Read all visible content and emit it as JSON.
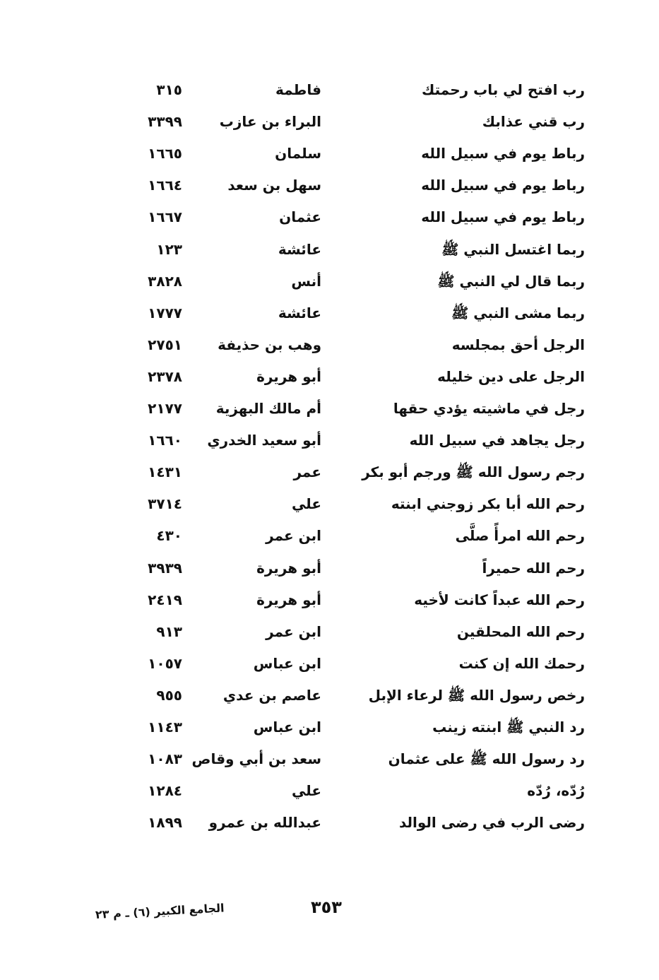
{
  "entries": [
    {
      "hadith": "رب افتح لي باب رحمتك",
      "narrator": "فاطمة",
      "number": "٣١٥"
    },
    {
      "hadith": "رب قني عذابك",
      "narrator": "البراء بن عازب",
      "number": "٣٣٩٩"
    },
    {
      "hadith": "رباط يوم في سبيل الله",
      "narrator": "سلمان",
      "number": "١٦٦٥"
    },
    {
      "hadith": "رباط يوم في سبيل الله",
      "narrator": "سهل بن سعد",
      "number": "١٦٦٤"
    },
    {
      "hadith": "رباط يوم في سبيل الله",
      "narrator": "عثمان",
      "number": "١٦٦٧"
    },
    {
      "hadith": "ربما اغتسل النبي ﷺ",
      "narrator": "عائشة",
      "number": "١٢٣"
    },
    {
      "hadith": "ربما قال لي النبي ﷺ",
      "narrator": "أنس",
      "number": "٣٨٢٨"
    },
    {
      "hadith": "ربما مشى النبي ﷺ",
      "narrator": "عائشة",
      "number": "١٧٧٧"
    },
    {
      "hadith": "الرجل أحق بمجلسه",
      "narrator": "وهب بن حذيفة",
      "number": "٢٧٥١"
    },
    {
      "hadith": "الرجل على دين خليله",
      "narrator": "أبو هريرة",
      "number": "٢٣٧٨"
    },
    {
      "hadith": "رجل في ماشيته يؤدي حقها",
      "narrator": "أم مالك البهزية",
      "number": "٢١٧٧"
    },
    {
      "hadith": "رجل يجاهد في سبيل الله",
      "narrator": "أبو سعيد الخدري",
      "number": "١٦٦٠"
    },
    {
      "hadith": "رجم رسول الله ﷺ ورجم أبو بكر",
      "narrator": "عمر",
      "number": "١٤٣١"
    },
    {
      "hadith": "رحم الله أبا بكر زوجني ابنته",
      "narrator": "علي",
      "number": "٣٧١٤"
    },
    {
      "hadith": "رحم الله امرأً صلَّى",
      "narrator": "ابن عمر",
      "number": "٤٣٠"
    },
    {
      "hadith": "رحم الله حميراً",
      "narrator": "أبو هريرة",
      "number": "٣٩٣٩"
    },
    {
      "hadith": "رحم الله عبداً كانت لأخيه",
      "narrator": "أبو هريرة",
      "number": "٢٤١٩"
    },
    {
      "hadith": "رحم الله المحلقين",
      "narrator": "ابن عمر",
      "number": "٩١٣"
    },
    {
      "hadith": "رحمك الله إن كنت",
      "narrator": "ابن عباس",
      "number": "١٠٥٧"
    },
    {
      "hadith": "رخص رسول الله ﷺ لرعاء الإبل",
      "narrator": "عاصم بن عدي",
      "number": "٩٥٥"
    },
    {
      "hadith": "رد النبي ﷺ ابنته زينب",
      "narrator": "ابن عباس",
      "number": "١١٤٣"
    },
    {
      "hadith": "رد رسول الله ﷺ على عثمان",
      "narrator": "سعد بن أبي وقاص",
      "number": "١٠٨٣"
    },
    {
      "hadith": "رُدّه، رُدّه",
      "narrator": "علي",
      "number": "١٢٨٤"
    },
    {
      "hadith": "رضى الرب في رضى الوالد",
      "narrator": "عبدالله بن عمرو",
      "number": "١٨٩٩"
    }
  ],
  "footer": {
    "page_number": "٣٥٣",
    "book_signature": "الجامع الكبير (٦) ـ م ٢٣"
  }
}
